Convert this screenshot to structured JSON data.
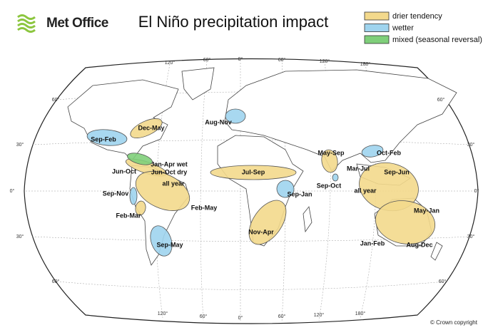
{
  "header": {
    "logo": "Met Office",
    "title": "El Niño precipitation impact"
  },
  "legend": [
    {
      "label": "drier tendency",
      "color": "#f3d98c"
    },
    {
      "label": "wetter",
      "color": "#9fd4ee"
    },
    {
      "label": "mixed (seasonal reversal)",
      "color": "#7fcf7a"
    }
  ],
  "map": {
    "longitude_labels_top": [
      "120°",
      "60°",
      "0°",
      "60°",
      "120°",
      "180°"
    ],
    "longitude_labels_bottom": [
      "120°",
      "60°",
      "0°",
      "60°",
      "120°",
      "180°"
    ],
    "latitude_labels_left": [
      "60°",
      "30°",
      "0°",
      "30°",
      "60°"
    ],
    "latitude_labels_right": [
      "60°",
      "30°",
      "0°",
      "30°",
      "60°"
    ],
    "regions": [
      "Sep-Feb",
      "Dec-May",
      "Jan-Apr wet",
      "Jun-Oct dry",
      "Jun-Oct",
      "all year",
      "Sep-Nov",
      "Feb-May",
      "Feb-Mar",
      "Sep-May",
      "Aug-Nov",
      "Jul-Sep",
      "Sep-Jan",
      "Nov-Apr",
      "May-Sep",
      "Sep-Oct",
      "Mar-Jul",
      "all year",
      "Oct-Feb",
      "Sep-Jun",
      "May-Jan",
      "Jan-Feb",
      "Aug-Dec"
    ]
  },
  "copyright": "© Crown copyright"
}
